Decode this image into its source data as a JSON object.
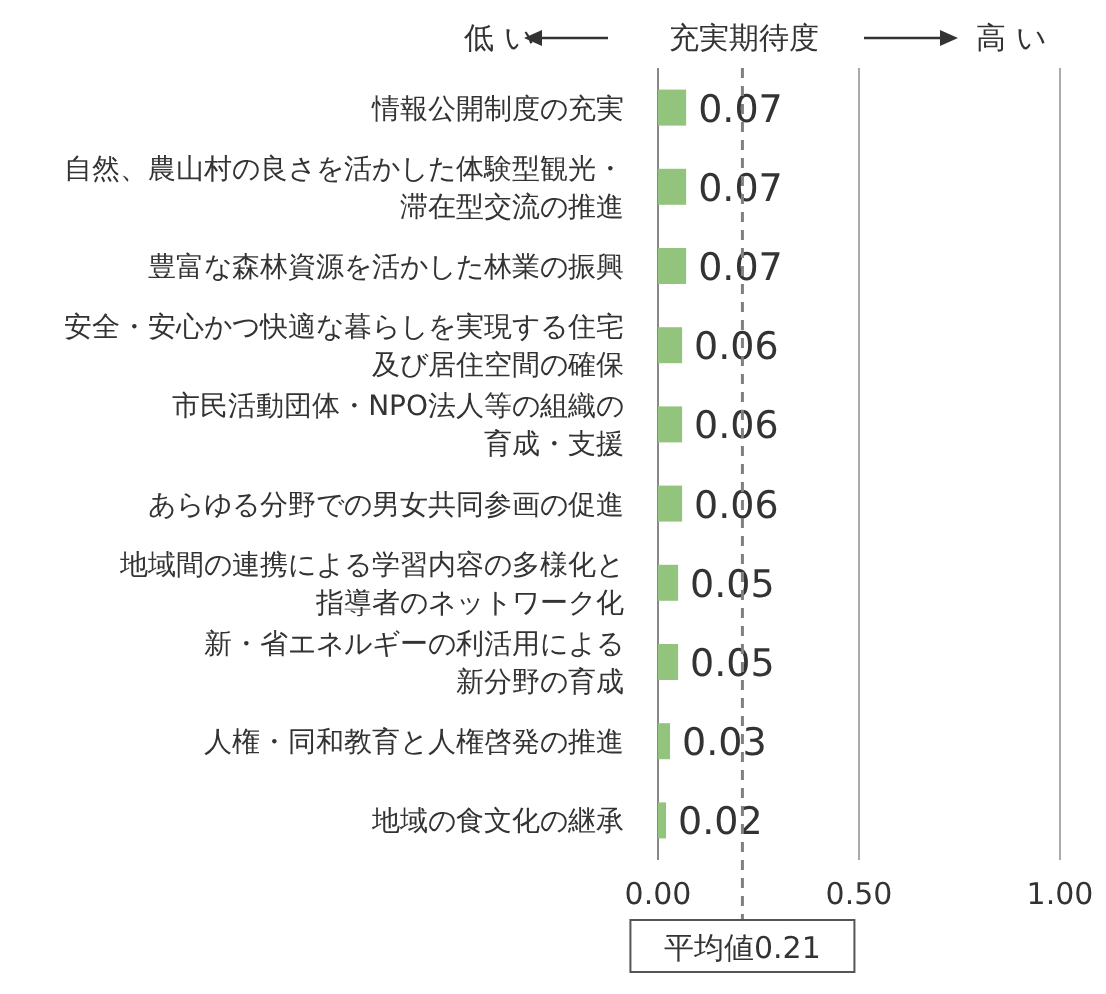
{
  "chart_data": {
    "type": "bar",
    "orientation": "horizontal",
    "xlabel": "充実期待度",
    "annotations": [
      "低 い",
      "高 い"
    ],
    "categories": [
      "情報公開制度の充実",
      "自然、農山村の良さを活かした体験型観光・滞在型交流の推進",
      "豊富な森林資源を活かした林業の振興",
      "安全・安心かつ快適な暮らしを実現する住宅及び居住空間の確保",
      "市民活動団体・NPO法人等の組織の育成・支援",
      "あらゆる分野での男女共同参画の促進",
      "地域間の連携による学習内容の多様化と指導者のネットワーク化",
      "新・省エネルギーの利活用による新分野の育成",
      "人権・同和教育と人権啓発の推進",
      "地域の食文化の継承"
    ],
    "values": [
      0.07,
      0.07,
      0.07,
      0.06,
      0.06,
      0.06,
      0.05,
      0.05,
      0.03,
      0.02
    ],
    "color": "#93c47d",
    "data_labels": true,
    "grid": "x",
    "xlim": [
      0,
      1
    ],
    "xticks": [
      {
        "value": 0,
        "label": "0.00"
      },
      {
        "value": 0.5,
        "label": "0.50"
      },
      {
        "value": 1,
        "label": "1.00"
      }
    ],
    "ref_lines": [
      {
        "axis": "x",
        "value": 0.21,
        "label": "平均値0.21",
        "line_style": "dashed",
        "color": "#808080"
      }
    ]
  }
}
